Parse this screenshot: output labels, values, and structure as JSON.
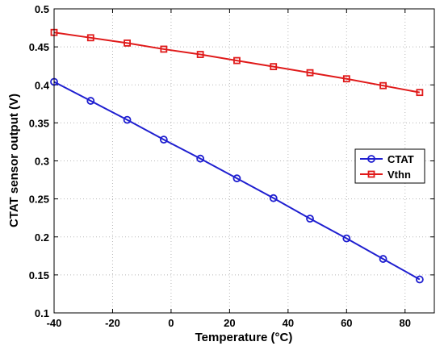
{
  "chart_data": {
    "type": "line",
    "xlabel": "Temperature (°C)",
    "ylabel": "CTAT sensor output (V)",
    "xlim": [
      -40,
      90
    ],
    "ylim": [
      0.1,
      0.5
    ],
    "xticks": [
      -40,
      -20,
      0,
      20,
      40,
      60,
      80
    ],
    "yticks": [
      0.1,
      0.15,
      0.2,
      0.25,
      0.3,
      0.35,
      0.4,
      0.45,
      0.5
    ],
    "xtick_labels": [
      "-40",
      "-20",
      "0",
      "20",
      "40",
      "60",
      "80"
    ],
    "ytick_labels": [
      "0.1",
      "0.15",
      "0.2",
      "0.25",
      "0.3",
      "0.35",
      "0.4",
      "0.45",
      "0.5"
    ],
    "grid": true,
    "legend_position": "right-center",
    "x": [
      -40,
      -27.5,
      -15,
      -2.5,
      10,
      22.5,
      35,
      47.5,
      60,
      72.5,
      85
    ],
    "series": [
      {
        "name": "CTAT",
        "color": "#1f1fd0",
        "marker": "circle",
        "values": [
          0.404,
          0.379,
          0.354,
          0.328,
          0.303,
          0.277,
          0.251,
          0.224,
          0.198,
          0.171,
          0.144
        ]
      },
      {
        "name": "Vthn",
        "color": "#e01a1a",
        "marker": "square",
        "values": [
          0.469,
          0.462,
          0.455,
          0.447,
          0.44,
          0.432,
          0.424,
          0.416,
          0.408,
          0.399,
          0.39
        ]
      }
    ]
  }
}
